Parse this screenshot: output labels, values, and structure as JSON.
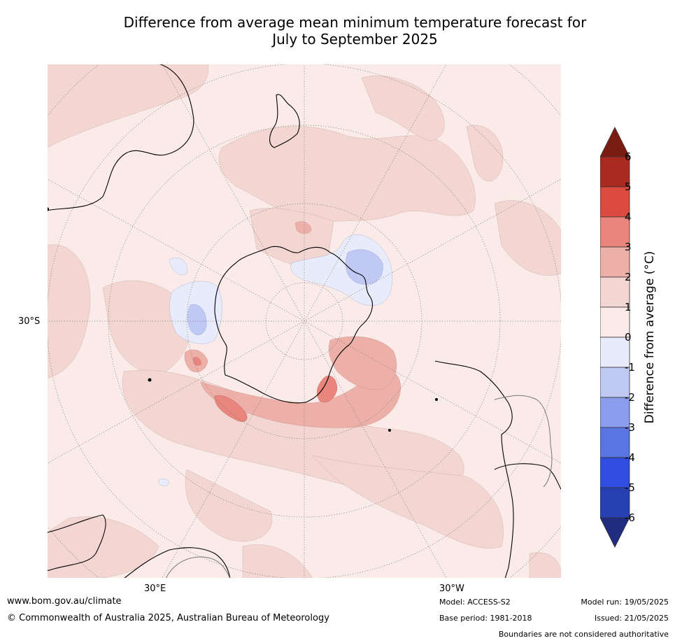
{
  "title": {
    "line1": "Difference from average mean minimum temperature forecast for",
    "line2": "July to September 2025"
  },
  "map": {
    "projection": "south-polar-stereographic",
    "labels": {
      "lat": "30°S",
      "lon_east": "30°E",
      "lon_west": "30°W"
    }
  },
  "colorbar": {
    "label": "Difference from average (°C)",
    "ticks": [
      "6",
      "5",
      "4",
      "3",
      "2",
      "1",
      "0",
      "-1",
      "-2",
      "-3",
      "-4",
      "-5",
      "-6"
    ],
    "colors": {
      "above_6": "#7a1c12",
      "5_to_6": "#aa2a20",
      "4_to_5": "#db4b3f",
      "3_to_4": "#e8857c",
      "2_to_3": "#edb0a8",
      "1_to_2": "#f3d5d1",
      "0_to_1": "#faebe8",
      "m1_to_0": "#e7ebfa",
      "m2_to_m1": "#c0c9f3",
      "m3_to_m2": "#8a9ceb",
      "m4_to_m3": "#5a74e2",
      "m5_to_m4": "#2f4ee0",
      "m6_to_m5": "#2640b3",
      "below_m6": "#1f2c80"
    }
  },
  "footer": {
    "website": "www.bom.gov.au/climate",
    "copyright": "© Commonwealth of Australia 2025, Australian Bureau of Meteorology",
    "model": "Model: ACCESS-S2",
    "base_period": "Base period: 1981-2018",
    "model_run": "Model run: 19/05/2025",
    "issued": "Issued: 21/05/2025",
    "disclaimer": "Boundaries are not considered authoritative"
  }
}
